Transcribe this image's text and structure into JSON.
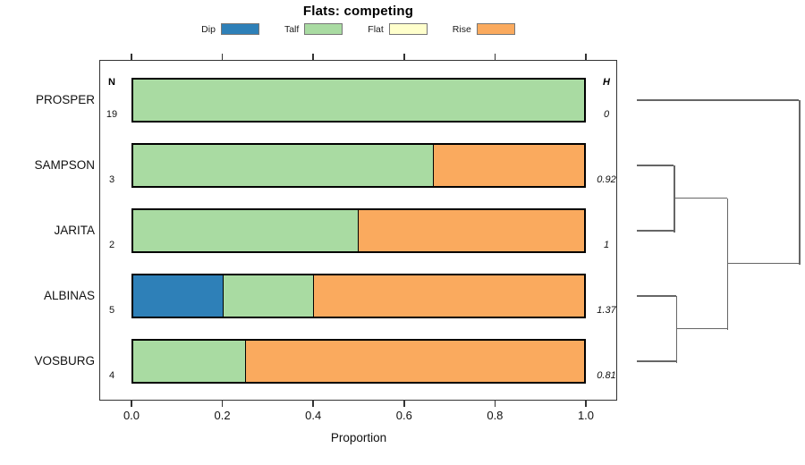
{
  "title": "Flats: competing",
  "legend": {
    "items": [
      {
        "label": "Dip",
        "color": "#2E80B8"
      },
      {
        "label": "Talf",
        "color": "#A9DBA2"
      },
      {
        "label": "Flat",
        "color": "#FFFFCC"
      },
      {
        "label": "Rise",
        "color": "#FAAA5E"
      }
    ]
  },
  "chart_data": {
    "type": "bar",
    "variant": "horizontal-stacked-proportion-with-dendrogram",
    "title": "Flats: competing",
    "xlabel": "Proportion",
    "xlim": [
      0,
      1
    ],
    "xticks": [
      "0.0",
      "0.2",
      "0.4",
      "0.6",
      "0.8",
      "1.0"
    ],
    "grid": false,
    "legend_position": "top",
    "series_order": [
      "Dip",
      "Talf",
      "Flat",
      "Rise"
    ],
    "colors": {
      "Dip": "#2E80B8",
      "Talf": "#A9DBA2",
      "Flat": "#FFFFCC",
      "Rise": "#FAAA5E"
    },
    "n_column_header": "N",
    "h_column_header": "H",
    "rows": [
      {
        "name": "PROSPER",
        "n": "19",
        "h": "0",
        "segments": {
          "Dip": 0,
          "Talf": 1,
          "Flat": 0,
          "Rise": 0
        }
      },
      {
        "name": "SAMPSON",
        "n": "3",
        "h": "0.92",
        "segments": {
          "Dip": 0,
          "Talf": 0.667,
          "Flat": 0,
          "Rise": 0.333
        }
      },
      {
        "name": "JARITA",
        "n": "2",
        "h": "1",
        "segments": {
          "Dip": 0,
          "Talf": 0.5,
          "Flat": 0,
          "Rise": 0.5
        }
      },
      {
        "name": "ALBINAS",
        "n": "5",
        "h": "1.37",
        "segments": {
          "Dip": 0.2,
          "Talf": 0.2,
          "Flat": 0,
          "Rise": 0.6
        }
      },
      {
        "name": "VOSBURG",
        "n": "4",
        "h": "0.81",
        "segments": {
          "Dip": 0,
          "Talf": 0.25,
          "Flat": 0,
          "Rise": 0.75
        }
      }
    ],
    "dendrogram": {
      "orientation": "right",
      "tree": {
        "height": 1.0,
        "children": [
          {
            "leaf": "PROSPER"
          },
          {
            "height": 0.558,
            "children": [
              {
                "height": 0.227,
                "children": [
                  {
                    "leaf": "SAMPSON"
                  },
                  {
                    "leaf": "JARITA"
                  }
                ]
              },
              {
                "height": 0.243,
                "children": [
                  {
                    "leaf": "ALBINAS"
                  },
                  {
                    "leaf": "VOSBURG"
                  }
                ]
              }
            ]
          }
        ]
      }
    }
  }
}
